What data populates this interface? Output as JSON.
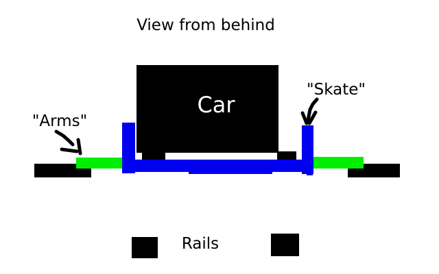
{
  "diagram": {
    "title": "View from behind",
    "car_label": "Car",
    "arms_label": "\"Arms\"",
    "skate_label": "\"Skate\"",
    "rails_label": "Rails"
  },
  "colors": {
    "background": "#ffffff",
    "car": "#000000",
    "skate": "#0000ee",
    "arms": "#00ee00",
    "rails": "#000000",
    "arrows": "#000000"
  },
  "icons": {
    "arms_pointer": "arrow-down-right-icon",
    "skate_pointer": "arrow-down-icon"
  }
}
